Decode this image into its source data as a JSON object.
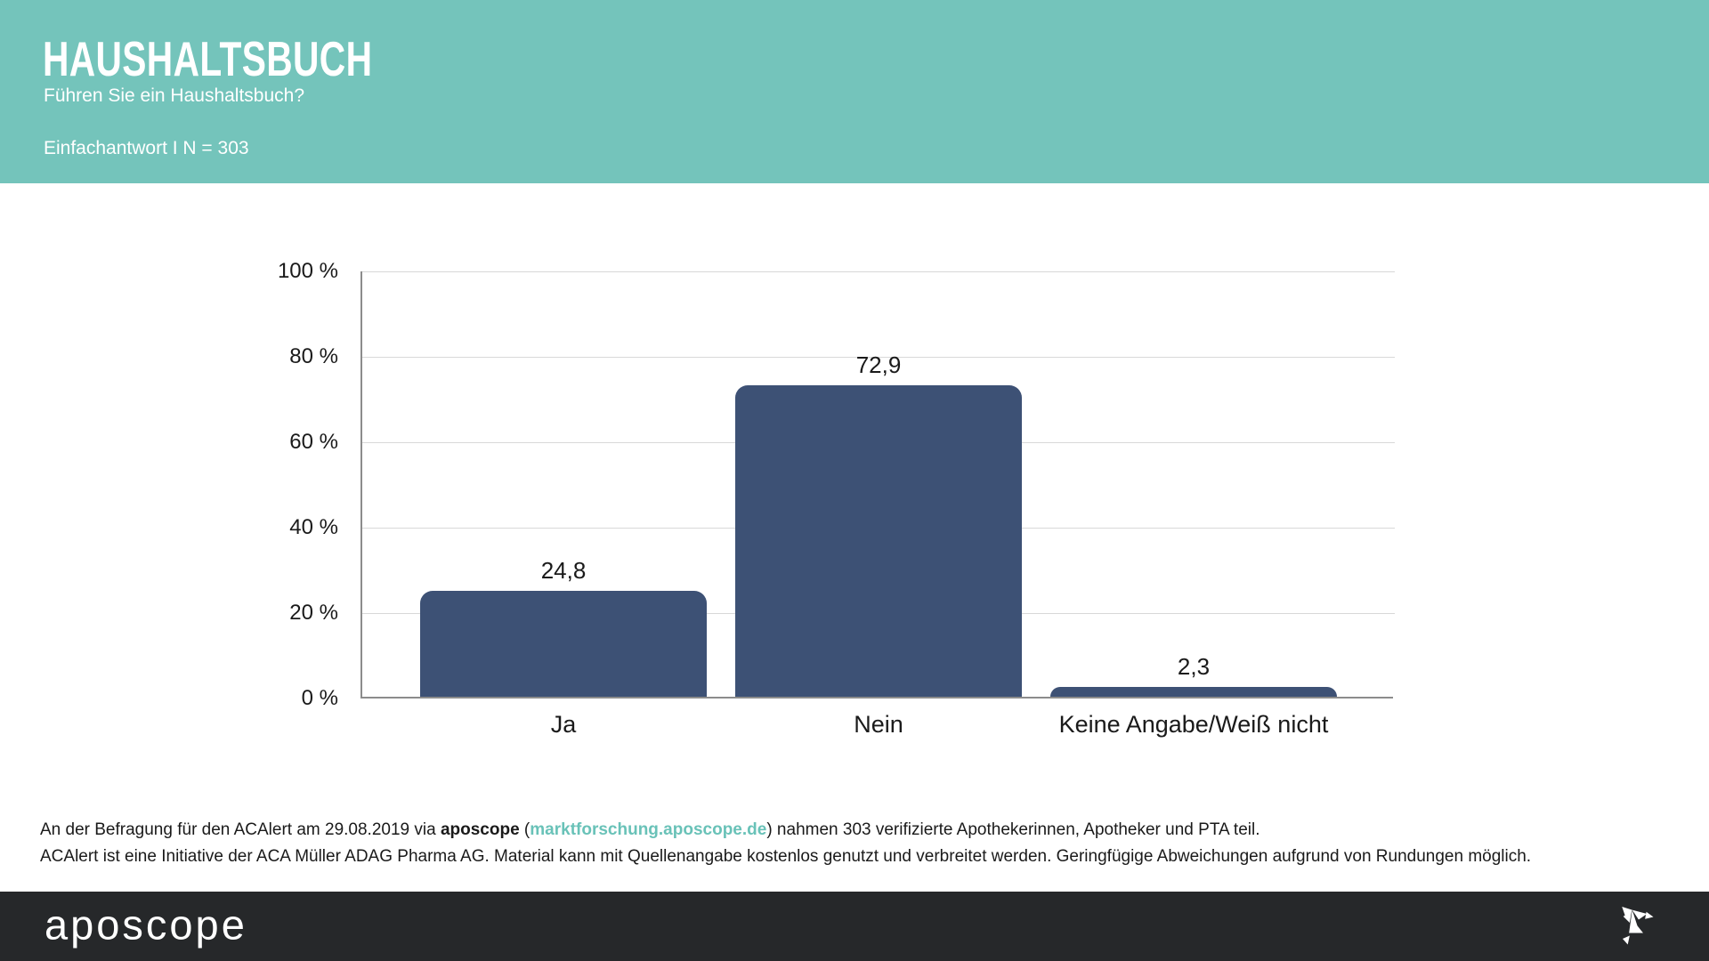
{
  "header": {
    "title": "HAUSHALTSBUCH",
    "subtitle": "Führen Sie ein Haushaltsbuch?",
    "meta": "Einfachantwort I N = 303",
    "background": "#74c4bb",
    "text_color": "#ffffff"
  },
  "chart_data": {
    "type": "bar",
    "title": "HAUSHALTSBUCH – Führen Sie ein Haushaltsbuch?",
    "categories": [
      "Ja",
      "Nein",
      "Keine Angabe/Weiß nicht"
    ],
    "values": [
      24.8,
      72.9,
      2.3
    ],
    "value_labels": [
      "24,8",
      "72,9",
      "2,3"
    ],
    "unit": "%",
    "xlabel": "",
    "ylabel": "",
    "ylim": [
      0,
      100
    ],
    "y_ticks": [
      "100 %",
      "80 %",
      "60 %",
      "40 %",
      "20 %",
      "0 %"
    ],
    "grid": true,
    "legend": "none",
    "bar_color": "#3d5175",
    "gridline_color": "#d8d8d8",
    "axis_color": "#8c8c8c"
  },
  "footnote": {
    "line1_prefix": "An der Befragung für den ACAlert am 29.08.2019 via ",
    "line1_brand": "aposcope",
    "line1_open": " (",
    "line1_link": "marktforschung.aposcope.de",
    "line1_close": ") nahmen 303 verifizierte Apothekerinnen, Apotheker und PTA teil.",
    "line2": "ACAlert ist eine Initiative der ACA Müller ADAG Pharma AG. Material kann mit Quellenangabe kostenlos genutzt und verbreitet werden. Geringfügige Abweichungen aufgrund von Rundungen möglich.",
    "link_color": "#69c2b8"
  },
  "footer": {
    "logo_text": "aposcope",
    "background": "#26282a",
    "icon": "origami-bird-icon",
    "icon_color": "#ffffff"
  }
}
